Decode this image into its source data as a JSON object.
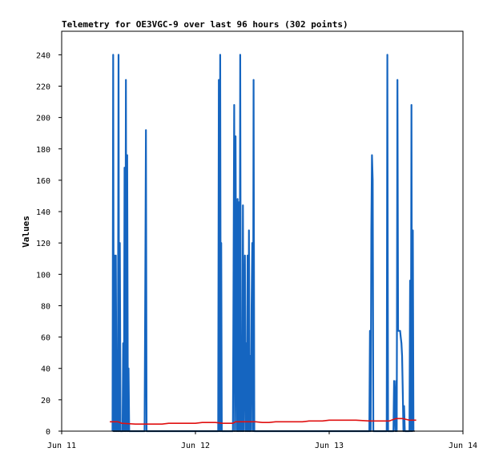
{
  "chart_data": {
    "type": "line",
    "title": "Telemetry for OE3VGC-9 over last 96 hours (302 points)",
    "xlabel": "",
    "ylabel": "Values",
    "xlim": [
      "Jun 11",
      "Jun 14"
    ],
    "ylim": [
      0,
      255
    ],
    "x_ticks": [
      "Jun 11",
      "Jun 12",
      "Jun 13",
      "Jun 14"
    ],
    "y_ticks": [
      0,
      20,
      40,
      60,
      80,
      100,
      120,
      140,
      160,
      180,
      200,
      220,
      240
    ],
    "grid": false,
    "legend": "none",
    "colors": {
      "blue": "#1565c0",
      "red": "#e01010",
      "black": "#000000",
      "frame": "#000000"
    },
    "series": [
      {
        "color": "#1565c0",
        "points": [
          [
            11.38,
            0
          ],
          [
            11.385,
            240
          ],
          [
            11.39,
            0
          ],
          [
            11.395,
            112
          ],
          [
            11.4,
            0
          ],
          [
            11.405,
            112
          ],
          [
            11.41,
            0
          ],
          [
            11.415,
            32
          ],
          [
            11.42,
            0
          ],
          [
            11.425,
            240
          ],
          [
            11.43,
            0
          ],
          [
            11.435,
            120
          ],
          [
            11.44,
            0
          ],
          [
            11.455,
            0
          ],
          [
            11.46,
            56
          ],
          [
            11.465,
            0
          ],
          [
            11.47,
            168
          ],
          [
            11.475,
            0
          ],
          [
            11.48,
            224
          ],
          [
            11.485,
            0
          ],
          [
            11.49,
            176
          ],
          [
            11.495,
            0
          ],
          [
            11.5,
            40
          ],
          [
            11.505,
            0
          ],
          [
            11.62,
            0
          ],
          [
            11.625,
            96
          ],
          [
            11.63,
            192
          ],
          [
            11.635,
            0
          ],
          [
            12.17,
            0
          ],
          [
            12.175,
            224
          ],
          [
            12.18,
            0
          ],
          [
            12.185,
            240
          ],
          [
            12.19,
            0
          ],
          [
            12.193,
            120
          ],
          [
            12.197,
            0
          ],
          [
            12.28,
            0
          ],
          [
            12.285,
            104
          ],
          [
            12.29,
            208
          ],
          [
            12.295,
            0
          ],
          [
            12.3,
            188
          ],
          [
            12.305,
            64
          ],
          [
            12.31,
            0
          ],
          [
            12.315,
            148
          ],
          [
            12.32,
            0
          ],
          [
            12.325,
            146
          ],
          [
            12.33,
            0
          ],
          [
            12.335,
            240
          ],
          [
            12.34,
            0
          ],
          [
            12.345,
            56
          ],
          [
            12.35,
            0
          ],
          [
            12.355,
            144
          ],
          [
            12.36,
            0
          ],
          [
            12.37,
            112
          ],
          [
            12.375,
            0
          ],
          [
            12.38,
            56
          ],
          [
            12.385,
            0
          ],
          [
            12.39,
            112
          ],
          [
            12.395,
            0
          ],
          [
            12.4,
            128
          ],
          [
            12.405,
            0
          ],
          [
            12.41,
            48
          ],
          [
            12.415,
            0
          ],
          [
            12.42,
            80
          ],
          [
            12.425,
            120
          ],
          [
            12.43,
            0
          ],
          [
            12.435,
            224
          ],
          [
            12.44,
            0
          ],
          [
            13.3,
            0
          ],
          [
            13.305,
            64
          ],
          [
            13.31,
            0
          ],
          [
            13.315,
            128
          ],
          [
            13.32,
            176
          ],
          [
            13.325,
            160
          ],
          [
            13.33,
            0
          ],
          [
            13.43,
            0
          ],
          [
            13.435,
            240
          ],
          [
            13.44,
            0
          ],
          [
            13.48,
            0
          ],
          [
            13.485,
            32
          ],
          [
            13.49,
            16
          ],
          [
            13.495,
            0
          ],
          [
            13.5,
            32
          ],
          [
            13.505,
            0
          ],
          [
            13.51,
            224
          ],
          [
            13.515,
            64
          ],
          [
            13.53,
            64
          ],
          [
            13.535,
            60
          ],
          [
            13.54,
            56
          ],
          [
            13.545,
            48
          ],
          [
            13.55,
            24
          ],
          [
            13.555,
            0
          ],
          [
            13.56,
            16
          ],
          [
            13.565,
            0
          ],
          [
            13.6,
            0
          ],
          [
            13.605,
            96
          ],
          [
            13.61,
            0
          ],
          [
            13.615,
            208
          ],
          [
            13.62,
            0
          ],
          [
            13.625,
            128
          ],
          [
            13.63,
            0
          ]
        ]
      },
      {
        "color": "#e01010",
        "points": [
          [
            11.36,
            6
          ],
          [
            11.4,
            6
          ],
          [
            11.42,
            6
          ],
          [
            11.45,
            5
          ],
          [
            11.55,
            4.5
          ],
          [
            11.75,
            4.5
          ],
          [
            11.8,
            5
          ],
          [
            12.0,
            5
          ],
          [
            12.05,
            5.5
          ],
          [
            12.15,
            5.5
          ],
          [
            12.2,
            5
          ],
          [
            12.28,
            5
          ],
          [
            12.3,
            6
          ],
          [
            12.45,
            6
          ],
          [
            12.5,
            5.5
          ],
          [
            12.55,
            5.5
          ],
          [
            12.6,
            6
          ],
          [
            12.8,
            6
          ],
          [
            12.85,
            6.5
          ],
          [
            12.95,
            6.5
          ],
          [
            13.0,
            7
          ],
          [
            13.2,
            7
          ],
          [
            13.3,
            6.5
          ],
          [
            13.45,
            6.5
          ],
          [
            13.5,
            8
          ],
          [
            13.55,
            8
          ],
          [
            13.6,
            7
          ],
          [
            13.65,
            7
          ]
        ]
      },
      {
        "color": "#000000",
        "points": [
          [
            11.38,
            0
          ],
          [
            13.64,
            0
          ]
        ]
      }
    ]
  }
}
